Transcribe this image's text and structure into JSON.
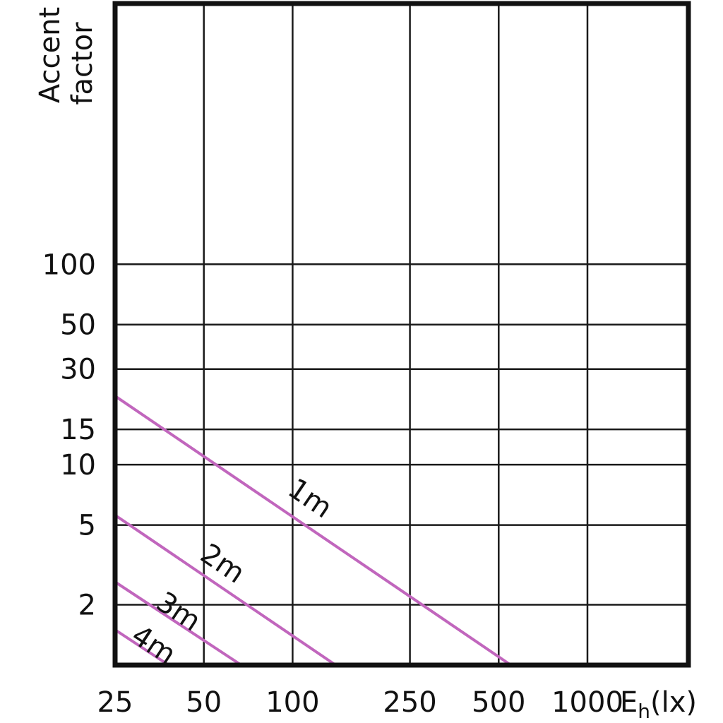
{
  "chart_data": {
    "type": "line",
    "title": "",
    "xlabel": "E",
    "xlabel_subscript": "h",
    "xlabel_suffix": "(lx)",
    "ylabel_lines": [
      "Accent",
      "factor"
    ],
    "x_scale": "log",
    "y_scale": "log",
    "xlim": [
      25,
      2200
    ],
    "ylim": [
      1.0,
      2000
    ],
    "x_ticks": [
      {
        "value": 25,
        "label": "25"
      },
      {
        "value": 50,
        "label": "50"
      },
      {
        "value": 100,
        "label": "100"
      },
      {
        "value": 250,
        "label": "250"
      },
      {
        "value": 500,
        "label": "500"
      },
      {
        "value": 1000,
        "label": "1000"
      }
    ],
    "y_ticks": [
      {
        "value": 2,
        "label": "2"
      },
      {
        "value": 5,
        "label": "5"
      },
      {
        "value": 10,
        "label": "10"
      },
      {
        "value": 15,
        "label": "15"
      },
      {
        "value": 30,
        "label": "30"
      },
      {
        "value": 50,
        "label": "50"
      },
      {
        "value": 100,
        "label": "100"
      }
    ],
    "grid": true,
    "line_color": "#c166bd",
    "series": [
      {
        "name": "1m",
        "x": [
          25,
          550
        ],
        "y": [
          22,
          1.0
        ],
        "label_at": {
          "x": 95,
          "y": 7.2
        }
      },
      {
        "name": "2m",
        "x": [
          25,
          140
        ],
        "y": [
          5.6,
          1.0
        ],
        "label_at": {
          "x": 48,
          "y": 3.4
        }
      },
      {
        "name": "3m",
        "x": [
          25,
          67
        ],
        "y": [
          2.6,
          1.0
        ],
        "label_at": {
          "x": 34,
          "y": 1.95
        }
      },
      {
        "name": "4m",
        "x": [
          25,
          38
        ],
        "y": [
          1.5,
          1.0
        ],
        "label_at": {
          "x": 28,
          "y": 1.33
        }
      }
    ]
  }
}
